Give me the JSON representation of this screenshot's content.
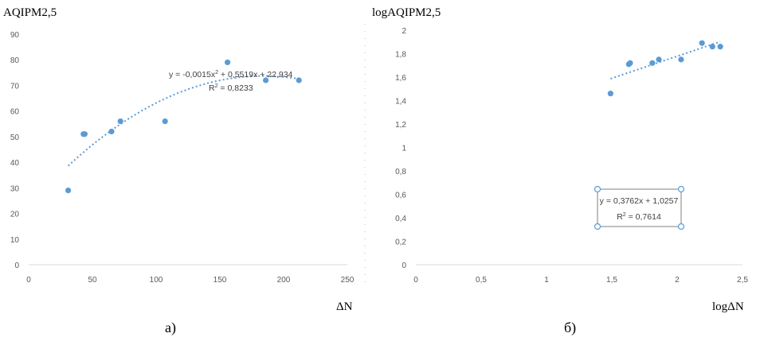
{
  "chart_data": [
    {
      "type": "scatter",
      "ylabel": "AQIPM2,5",
      "xlabel": "ΔN",
      "caption": "а)",
      "xlim": [
        0,
        250
      ],
      "ylim": [
        0,
        90
      ],
      "x_ticks": [
        "0",
        "50",
        "100",
        "150",
        "200",
        "250"
      ],
      "y_ticks": [
        "0",
        "10",
        "20",
        "30",
        "40",
        "50",
        "60",
        "70",
        "80",
        "90"
      ],
      "grid": false,
      "series": [
        {
          "points": [
            [
              31,
              29
            ],
            [
              43,
              51
            ],
            [
              44,
              51
            ],
            [
              65,
              52
            ],
            [
              72,
              56
            ],
            [
              107,
              56
            ],
            [
              156,
              79
            ],
            [
              186,
              72
            ],
            [
              212,
              72
            ]
          ]
        }
      ],
      "trendline": {
        "kind": "polynomial",
        "a2": -0.0015,
        "a1": 0.5519,
        "a0": 22.934,
        "x_range": [
          31,
          212
        ],
        "equation_prefix": "y = -0,0015x",
        "equation_exp": "2",
        "equation_suffix": " + 0,5519x + 22,934",
        "r2_prefix": "R",
        "r2_exp": "2",
        "r2_suffix": " = 0,8233"
      },
      "color": "#5b9bd5"
    },
    {
      "type": "scatter",
      "ylabel": "logAQIPM2,5",
      "xlabel": "logΔN",
      "caption": "б)",
      "xlim": [
        0,
        2.5
      ],
      "ylim": [
        0,
        2
      ],
      "x_ticks": [
        "0",
        "0,5",
        "1",
        "1,5",
        "2",
        "2,5"
      ],
      "y_ticks": [
        "0",
        "0,2",
        "0,4",
        "0,6",
        "0,8",
        "1",
        "1,2",
        "1,4",
        "1,6",
        "1,8",
        "2"
      ],
      "grid": false,
      "series": [
        {
          "points": [
            [
              1.49,
              1.46
            ],
            [
              1.63,
              1.71
            ],
            [
              1.64,
              1.72
            ],
            [
              1.81,
              1.72
            ],
            [
              1.86,
              1.75
            ],
            [
              2.03,
              1.75
            ],
            [
              2.19,
              1.89
            ],
            [
              2.27,
              1.86
            ],
            [
              2.33,
              1.86
            ]
          ]
        }
      ],
      "trendline": {
        "kind": "linear",
        "a1": 0.3762,
        "a0": 1.0257,
        "x_range": [
          1.49,
          2.33
        ],
        "equation_prefix": "y = 0,3762x + 1,0257",
        "equation_exp": "",
        "equation_suffix": "",
        "r2_prefix": "R",
        "r2_exp": "2",
        "r2_suffix": " = 0,7614"
      },
      "color": "#5b9bd5"
    }
  ]
}
